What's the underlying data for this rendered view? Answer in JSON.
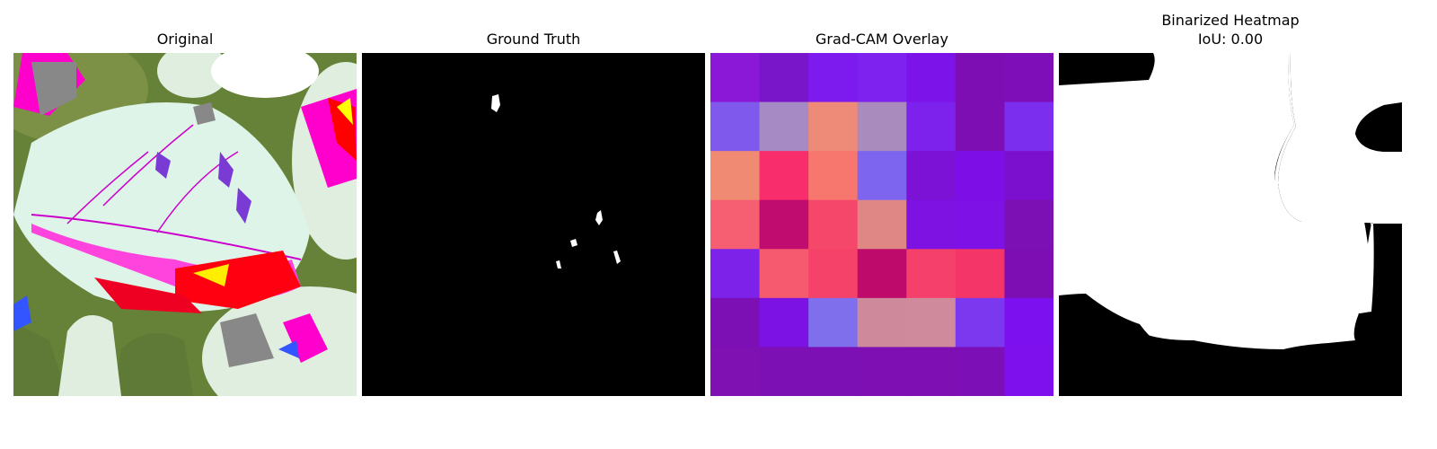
{
  "panels": {
    "original": {
      "title": "Original"
    },
    "ground_truth": {
      "title": "Ground Truth"
    },
    "gradcam": {
      "title": "Grad-CAM Overlay",
      "grid_colors": [
        [
          "#8a18d6",
          "#7a16c9",
          "#7d1aee",
          "#7d22ef",
          "#7c14e9",
          "#7d0eb3",
          "#7e0eb8"
        ],
        [
          "#7f59ec",
          "#a68ac3",
          "#ee8b78",
          "#aa8bbd",
          "#7c22ec",
          "#7d0eb3",
          "#7c2eee"
        ],
        [
          "#f18a72",
          "#f72d6c",
          "#f7776e",
          "#7d65f0",
          "#7d12d7",
          "#7d0ee6",
          "#7c10cf"
        ],
        [
          "#f65f72",
          "#bf0c6e",
          "#f5476a",
          "#de8785",
          "#7d12e2",
          "#7d11e6",
          "#7d10b4"
        ],
        [
          "#7d22e9",
          "#f65a6e",
          "#f54269",
          "#be0b6b",
          "#f5406b",
          "#f43567",
          "#7d0eb4"
        ],
        [
          "#7d10b4",
          "#7c12e3",
          "#7f6fed",
          "#ce8a9a",
          "#cf8a9c",
          "#7c38ef",
          "#7d10ee"
        ],
        [
          "#7f11b3",
          "#7d10b4",
          "#7d10b4",
          "#7d0fb3",
          "#7d0fb3",
          "#7d0fb6",
          "#7d10ec"
        ]
      ]
    },
    "binarized": {
      "title_line1": "Binarized Heatmap",
      "title_line2": "IoU: 0.00"
    }
  }
}
